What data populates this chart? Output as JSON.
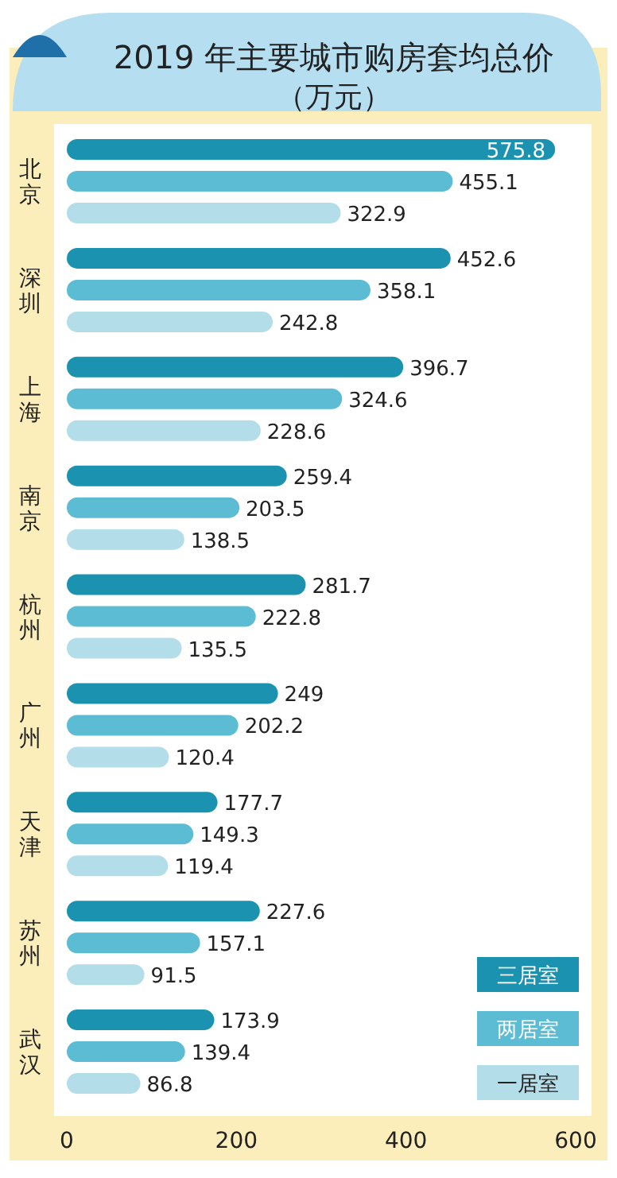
{
  "chart_data": {
    "type": "bar",
    "orientation": "horizontal",
    "title": "2019 年主要城市购房套均总价",
    "subtitle": "（万元）",
    "categories": [
      "北京",
      "深圳",
      "上海",
      "南京",
      "杭州",
      "广州",
      "天津",
      "苏州",
      "武汉"
    ],
    "series": [
      {
        "name": "三居室",
        "color": "#1b93b0",
        "values": [
          575.8,
          452.6,
          396.7,
          259.4,
          281.7,
          249,
          177.7,
          227.6,
          173.9
        ]
      },
      {
        "name": "两居室",
        "color": "#5cbcd4",
        "values": [
          455.1,
          358.1,
          324.6,
          203.5,
          222.8,
          202.2,
          149.3,
          157.1,
          139.4
        ]
      },
      {
        "name": "一居室",
        "color": "#b2dde9",
        "values": [
          322.9,
          242.8,
          228.6,
          138.5,
          135.5,
          120.4,
          119.4,
          91.5,
          86.8
        ]
      }
    ],
    "xlim": [
      0,
      600
    ],
    "xticks": [
      0,
      200,
      400,
      600
    ],
    "data_labels": true,
    "legend": "bottom right"
  }
}
